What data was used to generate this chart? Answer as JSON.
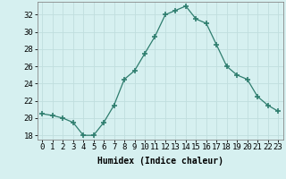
{
  "xlabel": "Humidex (Indice chaleur)",
  "x": [
    0,
    1,
    2,
    3,
    4,
    5,
    6,
    7,
    8,
    9,
    10,
    11,
    12,
    13,
    14,
    15,
    16,
    17,
    18,
    19,
    20,
    21,
    22,
    23
  ],
  "y": [
    20.5,
    20.3,
    20.0,
    19.5,
    18.0,
    18.0,
    19.5,
    21.5,
    24.5,
    25.5,
    27.5,
    29.5,
    32.0,
    32.5,
    33.0,
    31.5,
    31.0,
    28.5,
    26.0,
    25.0,
    24.5,
    22.5,
    21.5,
    20.8
  ],
  "line_color": "#2e7d6e",
  "marker": "+",
  "marker_size": 5,
  "bg_color": "#d6f0f0",
  "grid_major_color": "#c0dede",
  "grid_minor_color": "#d0e8e8",
  "ylim": [
    17.5,
    33.5
  ],
  "yticks": [
    18,
    20,
    22,
    24,
    26,
    28,
    30,
    32
  ],
  "xlim": [
    -0.5,
    23.5
  ],
  "label_fontsize": 7,
  "tick_fontsize": 6.5
}
